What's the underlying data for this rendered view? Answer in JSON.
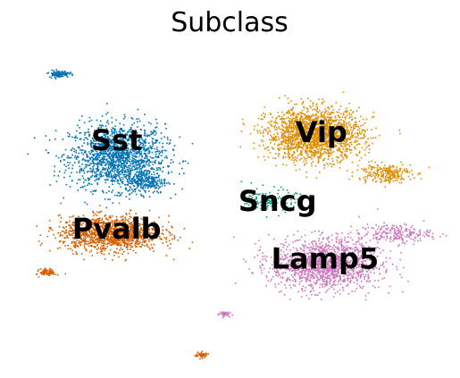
{
  "chart_data": {
    "type": "scatter",
    "title": "Subclass",
    "xlabel": "",
    "ylabel": "",
    "axes_visible": false,
    "grid": false,
    "legend": "on data",
    "series": [
      {
        "name": "Sst",
        "color": "#0173b2",
        "clusters": [
          {
            "x": 2.9,
            "y": 6.8,
            "sx": 1.05,
            "sy": 0.95,
            "n": 1600
          },
          {
            "x": 3.7,
            "y": 5.9,
            "sx": 0.45,
            "sy": 0.35,
            "n": 250
          },
          {
            "x": 1.3,
            "y": 9.8,
            "sx": 0.22,
            "sy": 0.1,
            "n": 120
          }
        ]
      },
      {
        "name": "Pvalb",
        "color": "#d55e00",
        "clusters": [
          {
            "x": 2.7,
            "y": 4.0,
            "sx": 1.1,
            "sy": 0.5,
            "n": 1300
          },
          {
            "x": 1.0,
            "y": 2.6,
            "sx": 0.18,
            "sy": 0.1,
            "n": 80
          },
          {
            "x": 5.2,
            "y": -0.4,
            "sx": 0.15,
            "sy": 0.08,
            "n": 60
          }
        ]
      },
      {
        "name": "Vip",
        "color": "#de8f05",
        "clusters": [
          {
            "x": 8.3,
            "y": 7.6,
            "sx": 1.05,
            "sy": 0.75,
            "n": 1900
          },
          {
            "x": 10.2,
            "y": 6.2,
            "sx": 0.6,
            "sy": 0.28,
            "n": 250
          }
        ]
      },
      {
        "name": "Sncg",
        "color": "#029e73",
        "clusters": [
          {
            "x": 7.1,
            "y": 5.2,
            "sx": 0.55,
            "sy": 0.35,
            "n": 130
          }
        ]
      },
      {
        "name": "Lamp5",
        "color": "#cc78bc",
        "clusters": [
          {
            "x": 8.6,
            "y": 2.9,
            "sx": 1.2,
            "sy": 0.75,
            "n": 1500
          },
          {
            "x": 10.5,
            "y": 4.0,
            "sx": 0.8,
            "sy": 0.28,
            "n": 220
          },
          {
            "x": 5.8,
            "y": 1.1,
            "sx": 0.12,
            "sy": 0.08,
            "n": 40
          }
        ]
      }
    ],
    "labels": [
      {
        "text": "Sst",
        "x": 2.9,
        "y": 7.3
      },
      {
        "text": "Pvalb",
        "x": 2.9,
        "y": 4.1
      },
      {
        "text": "Vip",
        "x": 8.5,
        "y": 7.6
      },
      {
        "text": "Sncg",
        "x": 7.3,
        "y": 5.1
      },
      {
        "text": "Lamp5",
        "x": 8.6,
        "y": 3.0
      }
    ],
    "xlim": [
      0,
      12
    ],
    "ylim": [
      -1,
      11
    ]
  }
}
